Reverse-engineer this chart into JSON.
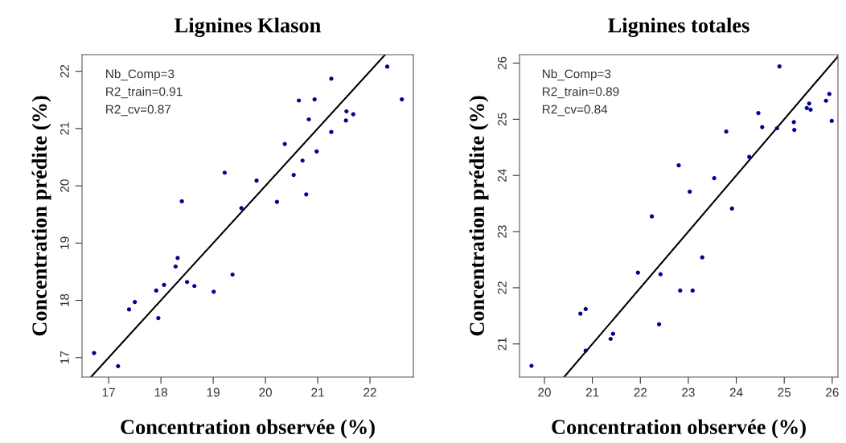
{
  "chart_data": [
    {
      "type": "scatter",
      "title": "Lignines Klason",
      "xlabel": "Concentration observée (%)",
      "ylabel": "Concentration prédite (%)",
      "xlim": [
        16.49,
        22.83
      ],
      "ylim": [
        16.66,
        22.29
      ],
      "xticks": [
        17,
        18,
        19,
        20,
        21,
        22
      ],
      "yticks": [
        17,
        18,
        19,
        20,
        21,
        22
      ],
      "grid": false,
      "legend": false,
      "marker": "circle",
      "annotations": [
        "Nb_Comp=3",
        "R2_train=0.91",
        "R2_cv=0.87"
      ],
      "series": [
        {
          "color": "#00008b",
          "x": [
            16.72,
            17.18,
            17.39,
            17.5,
            17.91,
            18.06,
            17.95,
            18.28,
            18.32,
            18.4,
            18.5,
            18.64,
            19.01,
            19.37,
            19.22,
            19.54,
            19.83,
            20.22,
            20.37,
            20.54,
            20.71,
            20.78,
            20.64,
            20.83,
            20.94,
            20.98,
            21.26,
            21.26,
            21.54,
            21.55,
            21.68,
            22.33,
            22.61
          ],
          "values": [
            17.08,
            16.85,
            17.84,
            17.97,
            18.17,
            18.27,
            17.69,
            18.59,
            18.74,
            19.73,
            18.32,
            18.25,
            18.15,
            18.45,
            20.23,
            19.61,
            20.09,
            19.72,
            20.73,
            20.19,
            20.44,
            19.85,
            21.49,
            21.16,
            21.51,
            20.6,
            21.87,
            20.94,
            21.14,
            21.3,
            21.25,
            22.08,
            21.51
          ]
        },
        {
          "type": "line",
          "color": "#000000",
          "line_style": "solid",
          "marker": "none",
          "x": [
            16.66,
            22.29
          ],
          "values": [
            16.66,
            22.29
          ]
        }
      ]
    },
    {
      "type": "scatter",
      "title": "Lignines totales",
      "xlabel": "Concentration observée (%)",
      "ylabel": "Concentration prédite (%)",
      "xlim": [
        19.48,
        26.12
      ],
      "ylim": [
        20.41,
        26.15
      ],
      "xticks": [
        20,
        21,
        22,
        23,
        24,
        25,
        26
      ],
      "yticks": [
        21,
        22,
        23,
        24,
        25,
        26
      ],
      "grid": false,
      "legend": false,
      "marker": "circle",
      "annotations": [
        "Nb_Comp=3",
        "R2_train=0.89",
        "R2_cv=0.84"
      ],
      "series": [
        {
          "color": "#00008b",
          "x": [
            19.73,
            20.75,
            20.86,
            20.86,
            21.38,
            21.43,
            21.95,
            22.24,
            22.42,
            22.39,
            22.8,
            22.83,
            23.03,
            23.09,
            23.29,
            23.54,
            23.79,
            23.91,
            24.27,
            24.46,
            24.54,
            24.85,
            24.9,
            25.2,
            25.21,
            25.47,
            25.52,
            25.55,
            25.87,
            25.94,
            25.99
          ],
          "values": [
            20.61,
            21.54,
            21.62,
            20.88,
            21.09,
            21.18,
            22.27,
            23.27,
            22.24,
            21.35,
            24.18,
            21.95,
            23.71,
            21.95,
            22.54,
            23.95,
            24.78,
            23.41,
            24.33,
            25.11,
            24.86,
            24.84,
            25.94,
            24.95,
            24.81,
            25.2,
            25.28,
            25.17,
            25.33,
            25.45,
            24.97
          ]
        },
        {
          "type": "line",
          "color": "#000000",
          "line_style": "solid",
          "marker": "none",
          "x": [
            20.41,
            26.12
          ],
          "values": [
            20.41,
            26.12
          ]
        }
      ]
    }
  ]
}
